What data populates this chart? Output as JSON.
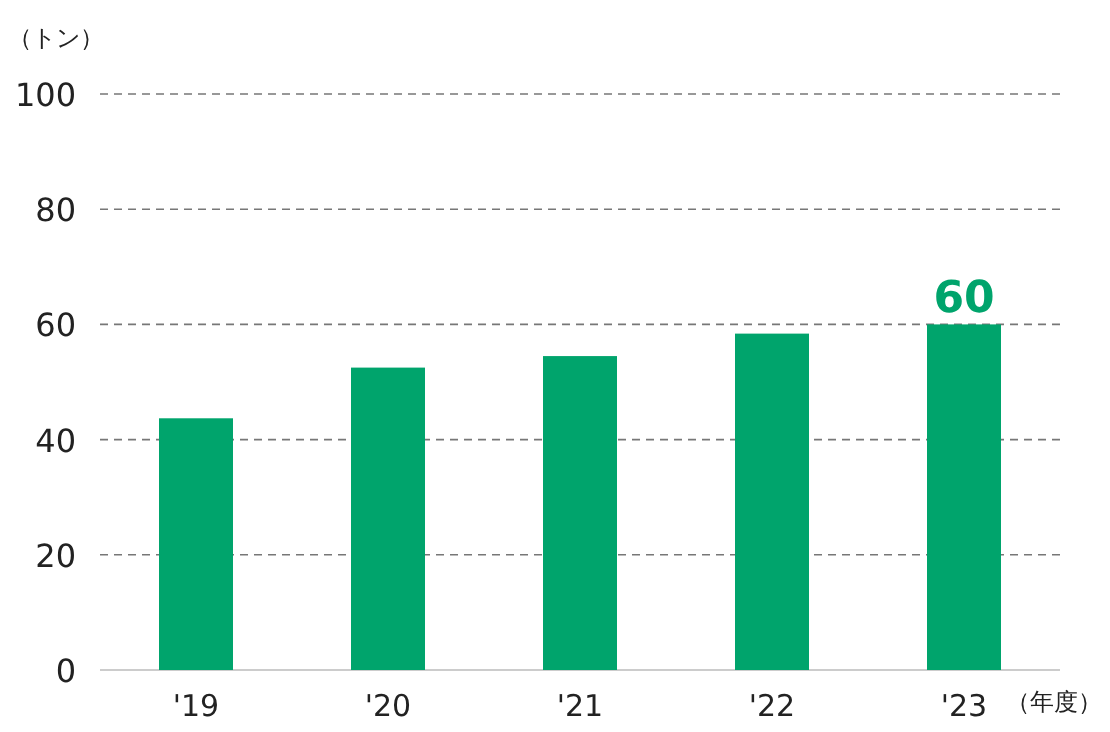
{
  "chart_data": {
    "type": "bar",
    "xlabel": "（年度）",
    "ylabel": "（トン）",
    "categories": [
      "'19",
      "'20",
      "'21",
      "'22",
      "'23"
    ],
    "values": [
      43.7,
      52.5,
      54.5,
      58.4,
      60
    ],
    "value_labels": [
      null,
      null,
      null,
      null,
      "60"
    ],
    "color": "#00a46c",
    "ylim": [
      0,
      100
    ],
    "yticks": [
      0,
      20,
      40,
      60,
      80,
      100
    ],
    "grid": "y"
  }
}
